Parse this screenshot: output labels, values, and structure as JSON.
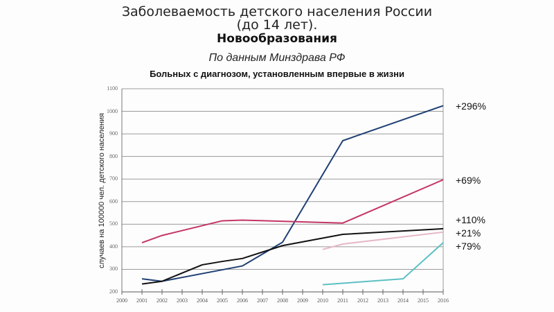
{
  "header": {
    "title_line1": "Заболеваемость детского населения России",
    "title_line2": "(до 14 лет).",
    "title_bold": "Новообразования",
    "subtitle": "По данным Минздрава РФ",
    "caption": "Больных с диагнозом, установленным впервые в жизни"
  },
  "chart_data": {
    "type": "line",
    "title": "Заболеваемость детского населения России (до 14 лет). Новообразования",
    "subtitle": "По данным Минздрава РФ — Больных с диагнозом, установленным впервые в жизни",
    "xlabel": "",
    "ylabel": "случаев на 100000 чел. детского населения",
    "x": [
      2000,
      2001,
      2002,
      2003,
      2004,
      2005,
      2006,
      2007,
      2008,
      2009,
      2010,
      2011,
      2012,
      2013,
      2014,
      2015,
      2016
    ],
    "xlim": [
      2000,
      2016
    ],
    "ylim": [
      200,
      1100
    ],
    "yticks": [
      200,
      300,
      400,
      500,
      600,
      700,
      800,
      900,
      1000,
      1100
    ],
    "grid": true,
    "legend": "none",
    "series": [
      {
        "name": "series-dark-blue",
        "color": "#1f3f73",
        "points": [
          [
            2001,
            258
          ],
          [
            2002,
            247
          ],
          [
            2006,
            315
          ],
          [
            2008,
            420
          ],
          [
            2011,
            870
          ],
          [
            2016,
            1025
          ]
        ],
        "annotation": "+296%"
      },
      {
        "name": "series-magenta",
        "color": "#c43466",
        "points": [
          [
            2001,
            418
          ],
          [
            2002,
            450
          ],
          [
            2005,
            515
          ],
          [
            2006,
            518
          ],
          [
            2011,
            505
          ],
          [
            2016,
            697
          ]
        ],
        "annotation": "+69%"
      },
      {
        "name": "series-black",
        "color": "#111111",
        "points": [
          [
            2001,
            235
          ],
          [
            2002,
            247
          ],
          [
            2004,
            320
          ],
          [
            2005,
            335
          ],
          [
            2006,
            348
          ],
          [
            2008,
            405
          ],
          [
            2011,
            455
          ],
          [
            2016,
            480
          ]
        ],
        "annotation": "+110%"
      },
      {
        "name": "series-light-pink",
        "color": "#e6b8c8",
        "points": [
          [
            2010,
            388
          ],
          [
            2011,
            412
          ],
          [
            2016,
            465
          ]
        ],
        "annotation": "+21%"
      },
      {
        "name": "series-cyan",
        "color": "#5cc0c4",
        "points": [
          [
            2010,
            232
          ],
          [
            2014,
            258
          ],
          [
            2016,
            418
          ]
        ],
        "annotation": "+79%"
      }
    ]
  },
  "annotations": [
    "+296%",
    "+69%",
    "+110%",
    "+21%",
    "+79%"
  ]
}
